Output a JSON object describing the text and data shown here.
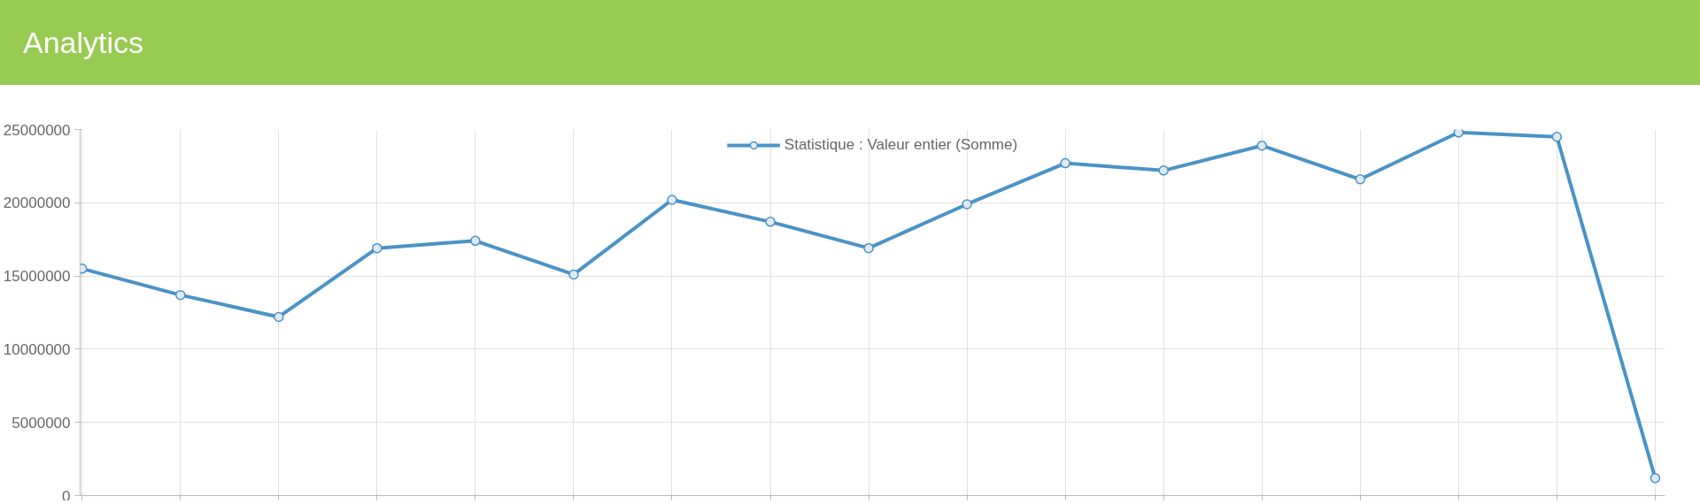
{
  "chart_data": {
    "type": "line",
    "title": "Analytics",
    "categories": [
      null,
      null,
      null,
      null,
      null,
      null,
      null,
      null,
      null,
      null,
      null,
      null,
      null,
      null,
      null,
      null,
      null
    ],
    "series": [
      {
        "name": "Statistique : Valeur entier (Somme)",
        "color": "#4a93c6",
        "values": [
          15500000,
          13700000,
          12200000,
          16900000,
          17400000,
          15100000,
          20200000,
          18700000,
          16900000,
          19900000,
          22700000,
          22200000,
          23900000,
          21600000,
          24800000,
          24500000,
          1200000
        ]
      }
    ],
    "ylim": [
      0,
      25000000
    ],
    "yticks": [
      0,
      5000000,
      10000000,
      15000000,
      20000000,
      25000000
    ],
    "grid": true,
    "legend": "top",
    "marker": "circle",
    "line_style": "solid"
  }
}
